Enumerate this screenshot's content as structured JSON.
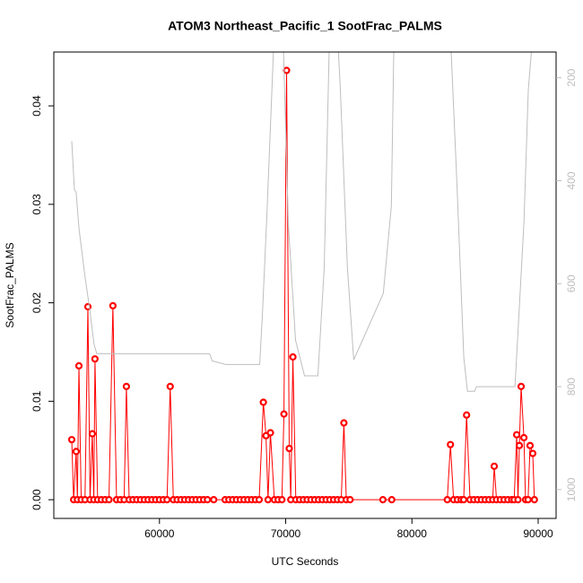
{
  "chart_data": {
    "type": "line",
    "title": "ATOM3 Northeast_Pacific_1 SootFrac_PALMS",
    "xlabel": "UTC Seconds",
    "ylabel": "SootFrac_PALMS",
    "xlim": [
      51630,
      91420
    ],
    "ylim": [
      -0.0019,
      0.04547
    ],
    "y2lim": [
      1056,
      150
    ],
    "xticks": [
      60000,
      70000,
      80000,
      90000
    ],
    "yticks": [
      {
        "value": 0,
        "label": "0.00"
      },
      0.01,
      0.02,
      0.03,
      0.04
    ],
    "y2ticks": [
      200,
      400,
      600,
      800,
      1000
    ],
    "grid": false,
    "series": [
      {
        "color": "#ff0000",
        "x": [
          53050,
          53200,
          53400,
          53500,
          53620,
          53800,
          54100,
          54330,
          54500,
          54680,
          54800,
          54890,
          55100,
          55400,
          55700,
          56000,
          56310,
          56600,
          56900,
          57200,
          57380,
          57600,
          57900,
          58200,
          58500,
          58800,
          59100,
          59400,
          59700,
          60000,
          60300,
          60600,
          60850,
          61100,
          61400,
          61700,
          62000,
          62300,
          62600,
          62900,
          63200,
          63500,
          63800,
          64300,
          65200,
          65500,
          65800,
          66100,
          66400,
          66700,
          67000,
          67300,
          67600,
          67900,
          68230,
          68440,
          68600,
          68790,
          69100,
          69400,
          69700,
          69860,
          70070,
          70280,
          70400,
          70570,
          70800,
          71100,
          71400,
          71700,
          72000,
          72300,
          72600,
          72900,
          73200,
          73500,
          73800,
          74100,
          74400,
          74610,
          74800,
          75100,
          77700,
          78400,
          82800,
          83050,
          83300,
          83600,
          83900,
          84100,
          84330,
          84600,
          84900,
          85200,
          85500,
          85800,
          86100,
          86400,
          86520,
          86700,
          87000,
          87300,
          87600,
          87900,
          88100,
          88300,
          88400,
          88510,
          88650,
          88870,
          89000,
          89200,
          89360,
          89570,
          89700
        ],
        "values": [
          0.0061,
          0,
          0.0049,
          0,
          0.0136,
          0,
          0,
          0.0196,
          0,
          0.0067,
          0,
          0.0143,
          0,
          0,
          0,
          0,
          0.0197,
          0,
          0,
          0,
          0.0115,
          0,
          0,
          0,
          0,
          0,
          0,
          0,
          0,
          0,
          0,
          0,
          0.0115,
          0,
          0,
          0,
          0,
          0,
          0,
          0,
          0,
          0,
          0,
          0,
          0,
          0,
          0,
          0,
          0,
          0,
          0,
          0,
          0,
          0,
          0.0099,
          0.0065,
          0,
          0.0068,
          0,
          0,
          0,
          0.0087,
          0.0436,
          0.0052,
          0,
          0.0145,
          0,
          0,
          0,
          0,
          0,
          0,
          0,
          0,
          0,
          0,
          0,
          0,
          0,
          0.0078,
          0,
          0,
          0,
          0,
          0,
          0.0056,
          0,
          0,
          0,
          0,
          0.0086,
          0,
          0,
          0,
          0,
          0,
          0,
          0,
          0.0034,
          0,
          0,
          0,
          0,
          0,
          0,
          0.0066,
          0,
          0.0055,
          0.0115,
          0.0063,
          0,
          0,
          0.0055,
          0.0047,
          0
        ]
      },
      {
        "color": "#bebebe",
        "axis": "y2",
        "x": [
          53050,
          53260,
          53400,
          53620,
          54110,
          54470,
          54820,
          55040,
          56600,
          63970,
          64180,
          65250,
          67940,
          68160,
          68510,
          69080,
          69790,
          70210,
          70780,
          71490,
          72550,
          73050,
          73470,
          74110,
          74330,
          74890,
          75390,
          77730,
          78370,
          78580,
          83050,
          83550,
          84110,
          84400,
          84960,
          85110,
          88160,
          88370,
          88870,
          89220,
          89570
        ],
        "values": [
          323,
          417,
          423,
          492,
          588,
          649,
          718,
          736,
          736,
          736,
          750,
          757,
          757,
          657,
          466,
          118,
          118,
          483,
          710,
          779,
          779,
          570,
          118,
          118,
          223,
          570,
          748,
          619,
          449,
          118,
          118,
          397,
          744,
          809,
          809,
          800,
          800,
          708,
          483,
          223,
          118
        ]
      }
    ]
  }
}
